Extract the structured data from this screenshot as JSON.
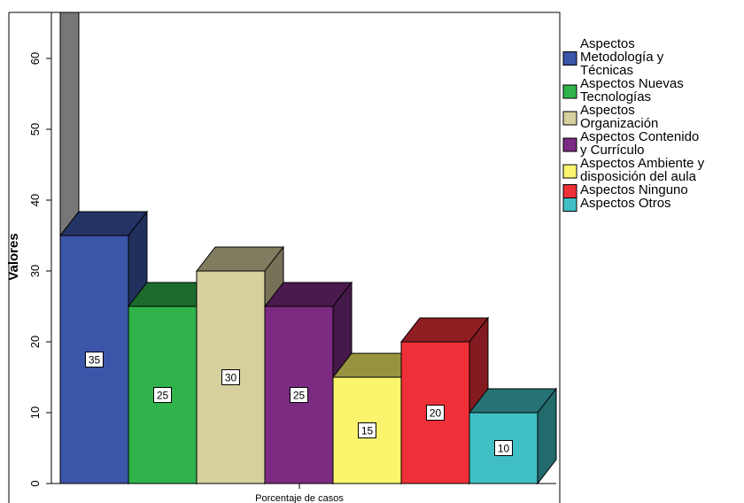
{
  "chart_data": {
    "type": "bar",
    "ylabel": "Valores",
    "xlabel": "",
    "categories": [
      "Porcentaje de casos"
    ],
    "ylim": [
      0,
      66
    ],
    "yticks": [
      0,
      10,
      20,
      30,
      40,
      50,
      60
    ],
    "grid": false,
    "legend_position": "right",
    "series": [
      {
        "name": "Aspectos Metodología y Técnicas",
        "legend_lines": [
          "Aspectos",
          "Metodología y",
          "Técnicas"
        ],
        "value": 35,
        "color": "#3b55a8"
      },
      {
        "name": "Aspectos Nuevas Tecnologías",
        "legend_lines": [
          "Aspectos Nuevas",
          "Tecnologías"
        ],
        "value": 25,
        "color": "#2fb34a"
      },
      {
        "name": "Aspectos Organización",
        "legend_lines": [
          "Aspectos",
          "Organización"
        ],
        "value": 30,
        "color": "#d6cf9e"
      },
      {
        "name": "Aspectos Contenido y Currículo",
        "legend_lines": [
          "Aspectos Contenido",
          "y Currículo"
        ],
        "value": 25,
        "color": "#7b2b82"
      },
      {
        "name": "Aspectos Ambiente y disposición del aula",
        "legend_lines": [
          "Aspectos Ambiente y",
          "disposición del aula"
        ],
        "value": 15,
        "color": "#fbf56d"
      },
      {
        "name": "Aspectos Ninguno",
        "legend_lines": [
          "Aspectos Ninguno"
        ],
        "value": 20,
        "color": "#ef3038"
      },
      {
        "name": "Aspectos Otros",
        "legend_lines": [
          "Aspectos Otros"
        ],
        "value": 10,
        "color": "#40c0c4"
      }
    ],
    "background_bar_color": "#777777"
  }
}
